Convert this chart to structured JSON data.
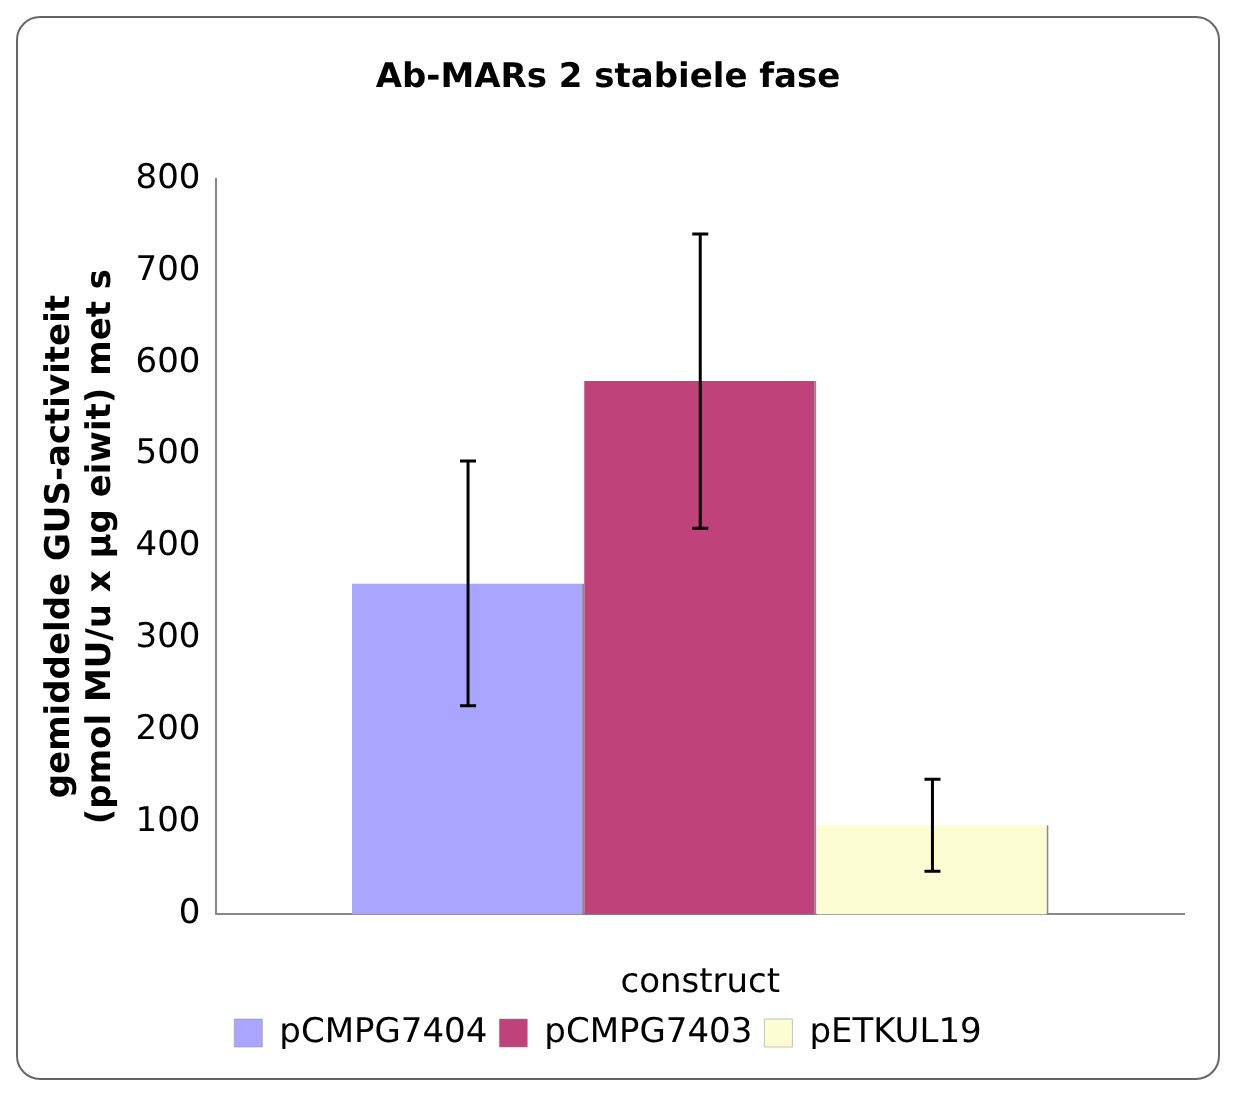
{
  "chart_data": {
    "type": "bar",
    "title": "Ab-MARs 2 stabiele fase",
    "xlabel": "construct",
    "ylabel": "gemiddelde GUS-activiteit\n(pmol MU/u x µg eiwit) met s",
    "categories": [
      null
    ],
    "series": [
      {
        "name": "pCMPG7404",
        "color": "#aaa6ff",
        "values": [
          360
        ],
        "errors": [
          133
        ]
      },
      {
        "name": "pCMPG7403",
        "color": "#c0427a",
        "values": [
          580
        ],
        "errors": [
          160
        ]
      },
      {
        "name": "pETKUL19",
        "color": "#fdfdd4",
        "values": [
          97
        ],
        "errors": [
          50
        ]
      }
    ],
    "ylim": [
      0,
      800
    ],
    "yticks": [
      0,
      100,
      200,
      300,
      400,
      500,
      600,
      700,
      800
    ],
    "grid": false,
    "legend": "bottom"
  }
}
